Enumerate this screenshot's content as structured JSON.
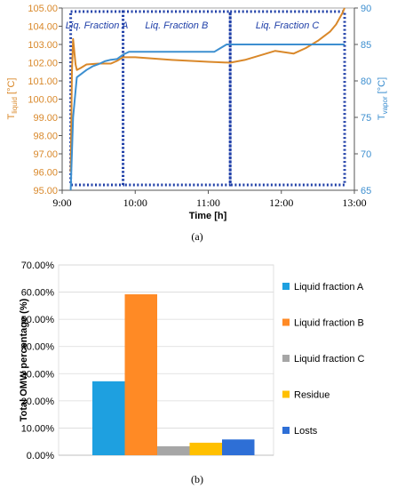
{
  "chart_data": [
    {
      "type": "line",
      "panel_label": "(a)",
      "xlabel": "Time [h]",
      "ylabel_left": {
        "main": "T",
        "sub": "liquid",
        "unit": " [°C]"
      },
      "ylabel_right": {
        "main": "T",
        "sub": "vapor",
        "unit": " [°C]"
      },
      "x_range": [
        "9:00",
        "13:00"
      ],
      "x_ticks": [
        "9:00",
        "10:00",
        "11:00",
        "12:00",
        "13:00"
      ],
      "ylim_left": [
        95.0,
        105.0
      ],
      "y_ticks_left": [
        "95.00",
        "96.00",
        "97.00",
        "98.00",
        "99.00",
        "100.00",
        "101.00",
        "102.00",
        "103.00",
        "104.00",
        "105.00"
      ],
      "ylim_right": [
        65,
        90
      ],
      "y_ticks_right": [
        "65",
        "70",
        "75",
        "80",
        "85",
        "90"
      ],
      "colors": {
        "liquid": "#d9882a",
        "vapor": "#3d8fd0",
        "fraction_box": "#1f3fa8"
      },
      "fractions": [
        {
          "label": "Liq. Fraction A",
          "start": "9:07",
          "end": "9:50"
        },
        {
          "label": "Liq. Fraction B",
          "start": "9:50",
          "end": "11:18"
        },
        {
          "label": "Liq. Fraction C",
          "start": "11:18",
          "end": "12:52"
        }
      ],
      "series": [
        {
          "key": "liquid",
          "axis": "left",
          "x": [
            "9:07",
            "9:08",
            "9:09",
            "9:10",
            "9:11",
            "9:12",
            "9:15",
            "9:20",
            "9:30",
            "9:40",
            "9:45",
            "9:50",
            "10:00",
            "10:30",
            "11:00",
            "11:18",
            "11:30",
            "11:45",
            "11:55",
            "12:00",
            "12:10",
            "12:20",
            "12:30",
            "12:40",
            "12:45",
            "12:50",
            "12:52"
          ],
          "y": [
            96.0,
            101.5,
            103.3,
            102.6,
            101.9,
            101.6,
            101.7,
            101.9,
            101.95,
            101.95,
            102.1,
            102.3,
            102.3,
            102.15,
            102.05,
            102.0,
            102.15,
            102.45,
            102.65,
            102.6,
            102.5,
            102.8,
            103.2,
            103.7,
            104.1,
            104.7,
            105.0
          ]
        },
        {
          "key": "vapor",
          "axis": "right",
          "x": [
            "9:07",
            "9:09",
            "9:12",
            "9:20",
            "9:25",
            "9:30",
            "9:35",
            "9:40",
            "9:45",
            "9:50",
            "9:55",
            "10:00",
            "10:30",
            "11:00",
            "11:05",
            "11:10",
            "11:15",
            "11:30",
            "12:00",
            "12:30",
            "12:52"
          ],
          "y": [
            65,
            75,
            80.5,
            81.5,
            82,
            82.3,
            82.7,
            82.9,
            83.0,
            83.6,
            84.0,
            84.0,
            84.0,
            84.0,
            84.0,
            84.5,
            85.0,
            85.0,
            85.0,
            85.0,
            85.0
          ]
        }
      ]
    },
    {
      "type": "bar",
      "panel_label": "(b)",
      "ylabel": "Total OMW percentage (%)",
      "ylim": [
        0,
        70
      ],
      "y_ticks": [
        "0.00%",
        "10.00%",
        "20.00%",
        "30.00%",
        "40.00%",
        "50.00%",
        "60.00%",
        "70.00%"
      ],
      "legend_position": "right",
      "categories": [
        "Liquid fraction A",
        "Liquid fraction B",
        "Liquid fraction C",
        "Residue",
        "Losts"
      ],
      "values": [
        27.2,
        59.2,
        3.3,
        4.6,
        5.8
      ],
      "colors": [
        "#1ea0e0",
        "#ff8a25",
        "#a6a6a6",
        "#ffc000",
        "#2e6fd6"
      ]
    }
  ]
}
